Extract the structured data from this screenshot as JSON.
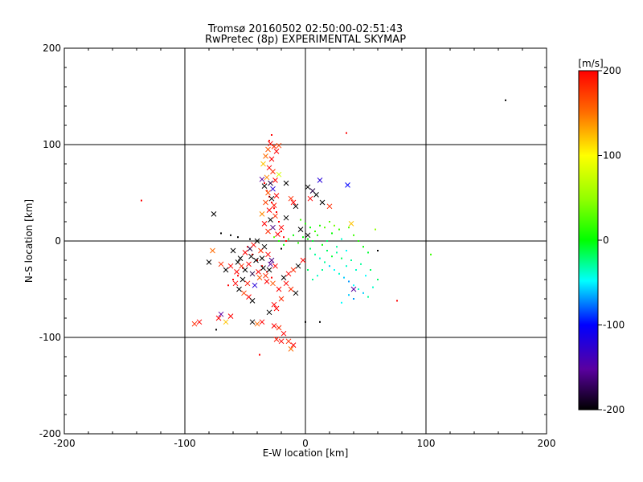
{
  "chart_data": {
    "type": "scatter",
    "title": "Tromsø 20160502 02:50:00-02:51:43",
    "subtitle": "RwPretec (8p) EXPERIMENTAL SKYMAP",
    "xlabel": "E-W location [km]",
    "ylabel": "N-S location [km]",
    "xlim": [
      -200,
      200
    ],
    "ylim": [
      -200,
      200
    ],
    "xticks": [
      "-200",
      "-100",
      "0",
      "100",
      "200"
    ],
    "yticks": [
      "-200",
      "-100",
      "0",
      "100",
      "200"
    ],
    "grid": true,
    "colorbar": {
      "label": "[m/s]",
      "range": [
        -200,
        200
      ],
      "ticks": [
        "200",
        "100",
        "0",
        "-100",
        "-200"
      ]
    },
    "cross_points": [
      [
        -29,
        101,
        200
      ],
      [
        -26,
        98,
        180
      ],
      [
        -31,
        95,
        160
      ],
      [
        -24,
        93,
        200
      ],
      [
        -33,
        88,
        150
      ],
      [
        -28,
        85,
        200
      ],
      [
        -22,
        99,
        170
      ],
      [
        -35,
        80,
        120
      ],
      [
        -30,
        76,
        200
      ],
      [
        -27,
        72,
        180
      ],
      [
        -32,
        66,
        140
      ],
      [
        -25,
        63,
        200
      ],
      [
        -29,
        60,
        -180
      ],
      [
        -34,
        57,
        -200
      ],
      [
        -27,
        54,
        -120
      ],
      [
        -31,
        50,
        160
      ],
      [
        -24,
        47,
        200
      ],
      [
        -28,
        44,
        -200
      ],
      [
        -33,
        40,
        170
      ],
      [
        -26,
        37,
        190
      ],
      [
        -30,
        32,
        200
      ],
      [
        -36,
        28,
        140
      ],
      [
        -25,
        26,
        180
      ],
      [
        -29,
        22,
        -200
      ],
      [
        -34,
        18,
        200
      ],
      [
        -27,
        14,
        -160
      ],
      [
        -31,
        10,
        180
      ],
      [
        -23,
        7,
        200
      ],
      [
        -22,
        69,
        80
      ],
      [
        -36,
        64,
        -150
      ],
      [
        -16,
        60,
        -200
      ],
      [
        2,
        56,
        -200
      ],
      [
        6,
        52,
        -180
      ],
      [
        9,
        48,
        -200
      ],
      [
        12,
        63,
        -120
      ],
      [
        4,
        44,
        200
      ],
      [
        14,
        40,
        -200
      ],
      [
        20,
        36,
        180
      ],
      [
        35,
        58,
        -100
      ],
      [
        38,
        18,
        120
      ],
      [
        -56,
        -22,
        -200
      ],
      [
        -53,
        -26,
        180
      ],
      [
        -50,
        -30,
        -200
      ],
      [
        -47,
        -24,
        200
      ],
      [
        -44,
        -34,
        -180
      ],
      [
        -41,
        -20,
        -200
      ],
      [
        -38,
        -38,
        160
      ],
      [
        -35,
        -28,
        -200
      ],
      [
        -32,
        -42,
        200
      ],
      [
        -29,
        -24,
        -150
      ],
      [
        -57,
        -32,
        200
      ],
      [
        -52,
        -40,
        -200
      ],
      [
        -48,
        -44,
        190
      ],
      [
        -45,
        -16,
        -200
      ],
      [
        -42,
        -46,
        -120
      ],
      [
        -39,
        -32,
        200
      ],
      [
        -36,
        -18,
        -200
      ],
      [
        -33,
        -36,
        180
      ],
      [
        -30,
        -30,
        -200
      ],
      [
        -27,
        -44,
        160
      ],
      [
        -54,
        -18,
        -200
      ],
      [
        -50,
        -12,
        200
      ],
      [
        -46,
        -8,
        -180
      ],
      [
        -43,
        -4,
        200
      ],
      [
        -40,
        0,
        -200
      ],
      [
        -37,
        -10,
        180
      ],
      [
        -34,
        -6,
        -200
      ],
      [
        -31,
        -14,
        200
      ],
      [
        -28,
        -20,
        -160
      ],
      [
        -25,
        -26,
        200
      ],
      [
        -60,
        -10,
        -200
      ],
      [
        -62,
        -26,
        200
      ],
      [
        -66,
        -30,
        -200
      ],
      [
        -70,
        -24,
        180
      ],
      [
        -58,
        -44,
        200
      ],
      [
        -55,
        -50,
        -200
      ],
      [
        -51,
        -54,
        170
      ],
      [
        -47,
        -58,
        200
      ],
      [
        -44,
        -62,
        -200
      ],
      [
        -22,
        -50,
        200
      ],
      [
        -20,
        -60,
        180
      ],
      [
        -24,
        -70,
        200
      ],
      [
        -30,
        -74,
        -200
      ],
      [
        -36,
        -84,
        200
      ],
      [
        -40,
        -86,
        150
      ],
      [
        -44,
        -84,
        -200
      ],
      [
        -26,
        -88,
        200
      ],
      [
        -22,
        -90,
        180
      ],
      [
        -18,
        -96,
        200
      ],
      [
        -14,
        -104,
        180
      ],
      [
        -10,
        -108,
        200
      ],
      [
        -12,
        -112,
        150
      ],
      [
        -20,
        -104,
        200
      ],
      [
        -24,
        -102,
        190
      ],
      [
        -70,
        -76,
        -150
      ],
      [
        -72,
        -80,
        200
      ],
      [
        -66,
        -84,
        120
      ],
      [
        -62,
        -78,
        200
      ],
      [
        -88,
        -84,
        200
      ],
      [
        -92,
        -86,
        180
      ],
      [
        -76,
        28,
        -200
      ],
      [
        -80,
        -22,
        -200
      ],
      [
        -77,
        -10,
        150
      ],
      [
        -10,
        40,
        200
      ],
      [
        -8,
        36,
        -200
      ],
      [
        -12,
        44,
        180
      ],
      [
        -16,
        24,
        -200
      ],
      [
        -20,
        14,
        200
      ],
      [
        -4,
        12,
        -200
      ],
      [
        2,
        6,
        -200
      ],
      [
        40,
        -50,
        -150
      ],
      [
        -2,
        -20,
        200
      ],
      [
        -6,
        -26,
        -200
      ],
      [
        -10,
        -30,
        180
      ],
      [
        -14,
        -34,
        200
      ],
      [
        -18,
        -38,
        -200
      ],
      [
        -16,
        -44,
        200
      ],
      [
        -12,
        -50,
        180
      ],
      [
        -8,
        -54,
        -200
      ],
      [
        -26,
        -66,
        200
      ]
    ],
    "dot_points": [
      [
        -2,
        4,
        0
      ],
      [
        2,
        2,
        0
      ],
      [
        6,
        0,
        -10
      ],
      [
        10,
        6,
        10
      ],
      [
        14,
        -4,
        0
      ],
      [
        18,
        0,
        -20
      ],
      [
        22,
        8,
        0
      ],
      [
        26,
        -6,
        -30
      ],
      [
        30,
        2,
        -40
      ],
      [
        34,
        -10,
        -50
      ],
      [
        -6,
        -2,
        10
      ],
      [
        -10,
        6,
        0
      ],
      [
        -14,
        2,
        20
      ],
      [
        -18,
        -4,
        0
      ],
      [
        -22,
        0,
        10
      ],
      [
        -26,
        4,
        30
      ],
      [
        4,
        -8,
        -20
      ],
      [
        8,
        -14,
        -30
      ],
      [
        12,
        -18,
        -40
      ],
      [
        16,
        -22,
        -30
      ],
      [
        20,
        -26,
        -60
      ],
      [
        24,
        -30,
        -50
      ],
      [
        28,
        -34,
        -40
      ],
      [
        32,
        -38,
        -60
      ],
      [
        36,
        -42,
        -70
      ],
      [
        40,
        -46,
        -50
      ],
      [
        44,
        -50,
        -40
      ],
      [
        48,
        -54,
        -60
      ],
      [
        52,
        -58,
        -30
      ],
      [
        56,
        -48,
        -40
      ],
      [
        60,
        -40,
        -20
      ],
      [
        42,
        -30,
        -40
      ],
      [
        46,
        -24,
        -30
      ],
      [
        50,
        -36,
        -50
      ],
      [
        54,
        -30,
        -20
      ],
      [
        38,
        -20,
        -30
      ],
      [
        34,
        -26,
        -40
      ],
      [
        30,
        -18,
        -20
      ],
      [
        26,
        -12,
        -30
      ],
      [
        22,
        -16,
        -10
      ],
      [
        18,
        -10,
        -20
      ],
      [
        14,
        -30,
        -30
      ],
      [
        10,
        -36,
        -40
      ],
      [
        6,
        -40,
        -30
      ],
      [
        2,
        -30,
        -20
      ],
      [
        36,
        -56,
        -60
      ],
      [
        40,
        -60,
        -70
      ],
      [
        30,
        -64,
        -50
      ],
      [
        58,
        12,
        50
      ],
      [
        104,
        -14,
        20
      ],
      [
        20,
        20,
        30
      ],
      [
        24,
        16,
        40
      ],
      [
        28,
        12,
        20
      ],
      [
        16,
        14,
        30
      ],
      [
        12,
        16,
        10
      ],
      [
        8,
        10,
        20
      ],
      [
        4,
        14,
        0
      ],
      [
        0,
        18,
        10
      ],
      [
        -4,
        22,
        20
      ],
      [
        36,
        14,
        30
      ],
      [
        40,
        6,
        20
      ],
      [
        44,
        0,
        10
      ],
      [
        48,
        -6,
        0
      ],
      [
        52,
        -12,
        -10
      ],
      [
        -30,
        104,
        200
      ],
      [
        -28,
        110,
        200
      ],
      [
        34,
        112,
        200
      ],
      [
        -136,
        42,
        200
      ],
      [
        76,
        -62,
        200
      ],
      [
        166,
        146,
        -200
      ],
      [
        60,
        -10,
        -200
      ],
      [
        -70,
        8,
        -200
      ],
      [
        -62,
        6,
        -200
      ],
      [
        -56,
        4,
        -200
      ],
      [
        -46,
        2,
        -200
      ],
      [
        -20,
        -8,
        -200
      ],
      [
        0,
        -84,
        -200
      ],
      [
        12,
        -84,
        -200
      ],
      [
        -74,
        -92,
        -200
      ],
      [
        -38,
        -118,
        200
      ],
      [
        -48,
        -6,
        200
      ],
      [
        -44,
        -14,
        200
      ],
      [
        -40,
        -20,
        200
      ],
      [
        -36,
        -26,
        200
      ],
      [
        -32,
        -32,
        200
      ],
      [
        -28,
        -38,
        200
      ],
      [
        -52,
        -28,
        200
      ],
      [
        -56,
        -36,
        200
      ],
      [
        -60,
        -40,
        200
      ],
      [
        -64,
        -46,
        200
      ],
      [
        -34,
        60,
        200
      ],
      [
        -32,
        52,
        200
      ],
      [
        -30,
        46,
        200
      ],
      [
        -28,
        40,
        200
      ],
      [
        -26,
        34,
        200
      ],
      [
        -24,
        30,
        200
      ],
      [
        -22,
        20,
        200
      ],
      [
        -20,
        10,
        200
      ],
      [
        -18,
        4,
        200
      ],
      [
        -16,
        0,
        200
      ]
    ]
  }
}
